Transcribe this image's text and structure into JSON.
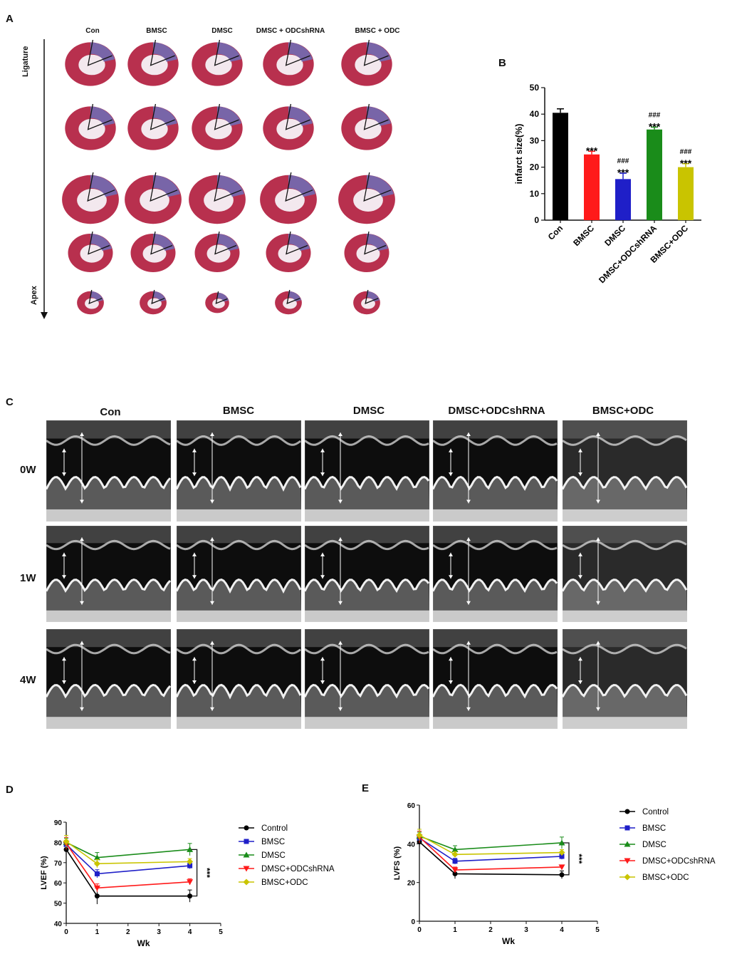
{
  "panels": {
    "a": "A",
    "b": "B",
    "c": "C",
    "d": "D",
    "e": "E"
  },
  "histology": {
    "groups": [
      "Con",
      "BMSC",
      "DMSC",
      "DMSC + ODCshRNA",
      "BMSC + ODC"
    ],
    "axis_top": "Ligature",
    "axis_bottom": "Apex",
    "rows": 5,
    "colors": {
      "tissue": "#b8304e",
      "infarct": "#6c6fb8"
    }
  },
  "echo": {
    "groups": [
      "Con",
      "BMSC",
      "DMSC",
      "DMSC+ODCshRNA",
      "BMSC+ODC"
    ],
    "rows": [
      "0W",
      "1W",
      "4W"
    ]
  },
  "chart_data": [
    {
      "panel": "B",
      "type": "bar",
      "categories": [
        "Con",
        "BMSC",
        "DMSC",
        "DMSC+ODCshRNA",
        "BMSC+ODC"
      ],
      "values": [
        40.5,
        24.8,
        15.5,
        34.2,
        20.0
      ],
      "errors": [
        1.5,
        1.2,
        2.2,
        0.9,
        1.3
      ],
      "colors": [
        "#000000",
        "#ff1a1a",
        "#1f1fc8",
        "#1a8c1a",
        "#c9c400"
      ],
      "annotations": [
        "",
        "***",
        "###\n***",
        "###\n***",
        "###\n***"
      ],
      "ylabel": "infarct size(%)",
      "xlabel": "",
      "ylim": [
        0,
        50
      ],
      "yticks": [
        0,
        10,
        20,
        30,
        40,
        50
      ]
    },
    {
      "panel": "D",
      "type": "line",
      "x": [
        0,
        1,
        4
      ],
      "xlim": [
        0,
        5
      ],
      "xticks": [
        0,
        1,
        2,
        3,
        4,
        5
      ],
      "xlabel": "Wk",
      "ylabel": "LVEF (%)",
      "ylim": [
        40,
        90
      ],
      "yticks": [
        40,
        50,
        60,
        70,
        80,
        90
      ],
      "significance": "***",
      "series": [
        {
          "name": "Control",
          "values": [
            76.5,
            53.5,
            53.5
          ],
          "errors": [
            2.5,
            4.0,
            3.0
          ],
          "color": "#000000",
          "marker": "circle"
        },
        {
          "name": "BMSC",
          "values": [
            79.0,
            64.5,
            68.5
          ],
          "errors": [
            2.0,
            2.0,
            1.5
          ],
          "color": "#1f1fc8",
          "marker": "square"
        },
        {
          "name": "DMSC",
          "values": [
            80.0,
            72.5,
            76.5
          ],
          "errors": [
            2.0,
            2.5,
            3.0
          ],
          "color": "#1a8c1a",
          "marker": "triangle"
        },
        {
          "name": "DMSC+ODCshRNA",
          "values": [
            79.5,
            57.5,
            60.5
          ],
          "errors": [
            3.0,
            2.0,
            1.5
          ],
          "color": "#ff1a1a",
          "marker": "triangle-down"
        },
        {
          "name": "BMSC+ODC",
          "values": [
            80.5,
            69.5,
            70.5
          ],
          "errors": [
            3.0,
            2.0,
            1.5
          ],
          "color": "#c9c400",
          "marker": "diamond"
        }
      ]
    },
    {
      "panel": "E",
      "type": "line",
      "x": [
        0,
        1,
        4
      ],
      "xlim": [
        0,
        5
      ],
      "xticks": [
        0,
        1,
        2,
        3,
        4,
        5
      ],
      "xlabel": "Wk",
      "ylabel": "LVFS (%)",
      "ylim": [
        0,
        60
      ],
      "yticks": [
        0,
        20,
        40,
        60
      ],
      "significance": "***",
      "series": [
        {
          "name": "Control",
          "values": [
            41.0,
            24.5,
            24.0
          ],
          "errors": [
            2.5,
            2.5,
            2.0
          ],
          "color": "#000000",
          "marker": "circle"
        },
        {
          "name": "BMSC",
          "values": [
            43.0,
            31.0,
            33.5
          ],
          "errors": [
            2.0,
            1.5,
            1.5
          ],
          "color": "#1f1fc8",
          "marker": "square"
        },
        {
          "name": "DMSC",
          "values": [
            44.0,
            37.0,
            40.5
          ],
          "errors": [
            2.0,
            2.0,
            3.0
          ],
          "color": "#1a8c1a",
          "marker": "triangle"
        },
        {
          "name": "DMSC+ODCshRNA",
          "values": [
            43.5,
            26.5,
            28.0
          ],
          "errors": [
            3.0,
            1.5,
            1.0
          ],
          "color": "#ff1a1a",
          "marker": "triangle-down"
        },
        {
          "name": "BMSC+ODC",
          "values": [
            44.5,
            34.5,
            35.5
          ],
          "errors": [
            3.0,
            1.5,
            1.5
          ],
          "color": "#c9c400",
          "marker": "diamond"
        }
      ]
    }
  ]
}
